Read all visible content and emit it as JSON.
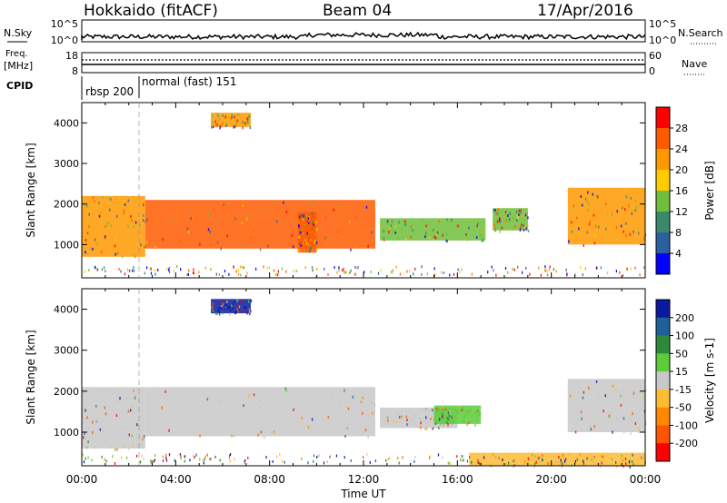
{
  "header": {
    "station": "Hokkaido (fitACF)",
    "beam": "Beam 04",
    "date": "17/Apr/2016"
  },
  "strip_labels": {
    "nsky_label": "N.Sky",
    "nsky_ticks": [
      "10^5",
      "10^0"
    ],
    "nsearch_label": "N.Search",
    "nsearch_ticks": [
      "10^5",
      "10^0"
    ],
    "freq_label_1": "Freq.",
    "freq_label_2": "[MHz]",
    "freq_ticks": [
      "18",
      "8"
    ],
    "nave_label": "Nave",
    "nave_ticks": [
      "60",
      "0"
    ],
    "cpid_label": "CPID",
    "cpid_modes": [
      "rbsp 200",
      "normal (fast) 151"
    ]
  },
  "chart_data": [
    {
      "type": "heatmap",
      "name": "power",
      "ylabel": "Slant Range [km]",
      "yticks": [
        1000,
        2000,
        3000,
        4000
      ],
      "ylim": [
        180,
        4500
      ],
      "colorbar_label": "Power [dB]",
      "colorbar_ticks": [
        4,
        8,
        12,
        16,
        20,
        24,
        28
      ],
      "colorbar_range": [
        0,
        32
      ],
      "colors": [
        "#0000ff",
        "#2c5fa0",
        "#3a8a6a",
        "#6fbf3a",
        "#ffcc00",
        "#ff9900",
        "#ff5a00",
        "#ff0000"
      ],
      "regions": [
        {
          "t": [
            0.0,
            2.7
          ],
          "r": [
            700,
            2200
          ],
          "v": 21
        },
        {
          "t": [
            2.7,
            12.5
          ],
          "r": [
            900,
            2100
          ],
          "v": 27
        },
        {
          "t": [
            9.2,
            10.0
          ],
          "r": [
            800,
            1800
          ],
          "v": 24
        },
        {
          "t": [
            5.5,
            7.2
          ],
          "r": [
            3900,
            4250
          ],
          "v": 22
        },
        {
          "t": [
            12.7,
            17.2
          ],
          "r": [
            1100,
            1650
          ],
          "v": 14
        },
        {
          "t": [
            17.5,
            19.0
          ],
          "r": [
            1350,
            1900
          ],
          "v": 12
        },
        {
          "t": [
            20.7,
            24.0
          ],
          "r": [
            1000,
            2400
          ],
          "v": 20
        }
      ]
    },
    {
      "type": "heatmap",
      "name": "velocity",
      "ylabel": "Slant Range [km]",
      "yticks": [
        1000,
        2000,
        3000,
        4000
      ],
      "ylim": [
        180,
        4500
      ],
      "colorbar_label": "Velocity [m s-1]",
      "colorbar_ticks": [
        200,
        100,
        50,
        15,
        -15,
        -50,
        -100,
        -200
      ],
      "colors": [
        "#0a1aa0",
        "#1f5f9a",
        "#2e8a3a",
        "#5ccc3a",
        "#c8c8c8",
        "#ffbb33",
        "#ff8800",
        "#ff5500",
        "#ff0000"
      ],
      "regions": [
        {
          "t": [
            0.0,
            2.7
          ],
          "r": [
            600,
            2100
          ],
          "v": 0
        },
        {
          "t": [
            2.7,
            12.5
          ],
          "r": [
            900,
            2100
          ],
          "v": 0
        },
        {
          "t": [
            5.5,
            7.2
          ],
          "r": [
            3900,
            4250
          ],
          "v": 200
        },
        {
          "t": [
            12.7,
            16.0
          ],
          "r": [
            1100,
            1600
          ],
          "v": 0
        },
        {
          "t": [
            15.0,
            17.0
          ],
          "r": [
            1200,
            1650
          ],
          "v": 40
        },
        {
          "t": [
            20.7,
            24.0
          ],
          "r": [
            1000,
            2300
          ],
          "v": 0
        },
        {
          "t": [
            16.5,
            24.0
          ],
          "r": [
            180,
            500
          ],
          "v": -40
        }
      ]
    }
  ],
  "x_axis": {
    "label": "Time UT",
    "ticks": [
      "00:00",
      "04:00",
      "08:00",
      "12:00",
      "16:00",
      "20:00",
      "00:00"
    ]
  }
}
